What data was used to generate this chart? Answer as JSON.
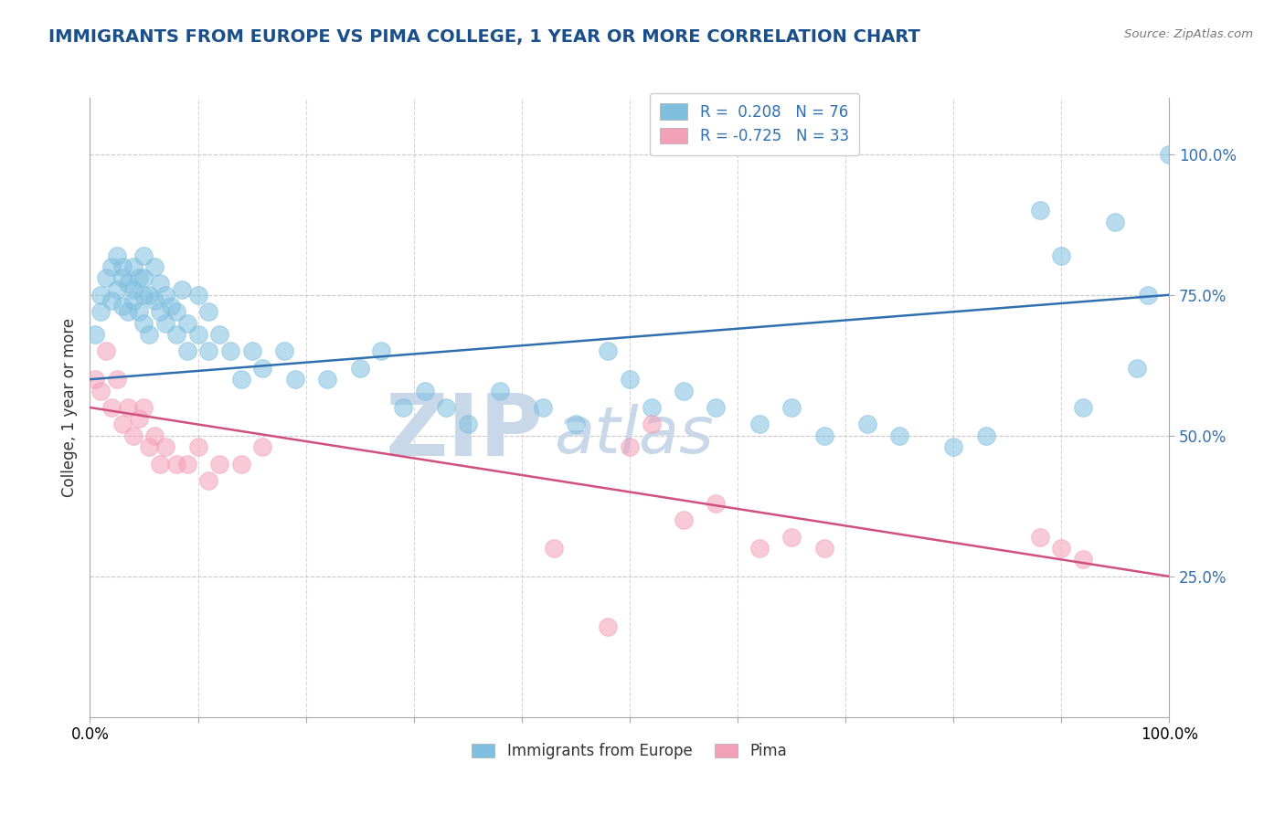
{
  "title": "IMMIGRANTS FROM EUROPE VS PIMA COLLEGE, 1 YEAR OR MORE CORRELATION CHART",
  "source_text": "Source: ZipAtlas.com",
  "ylabel": "College, 1 year or more",
  "xmin": 0.0,
  "xmax": 1.0,
  "ymin": 0.0,
  "ymax": 1.1,
  "ytick_labels": [
    "25.0%",
    "50.0%",
    "75.0%",
    "100.0%"
  ],
  "ytick_values": [
    0.25,
    0.5,
    0.75,
    1.0
  ],
  "legend_r1": "R =  0.208",
  "legend_n1": "N = 76",
  "legend_r2": "R = -0.725",
  "legend_n2": "N = 33",
  "color_blue": "#7fbfdf",
  "color_pink": "#f4a0b8",
  "line_color_blue": "#3070b0",
  "line_color_pink": "#d05080",
  "watermark_zip": "ZIP",
  "watermark_atlas": "atlas",
  "watermark_color": "#c8d8e8",
  "blue_line_y_start": 0.6,
  "blue_line_y_end": 0.75,
  "pink_line_y_start": 0.55,
  "pink_line_y_end": 0.25,
  "background_color": "#ffffff",
  "grid_color": "#cccccc",
  "title_color": "#1a4f8a",
  "legend_text_color": "#3070b0",
  "blue_scatter_x": [
    0.005,
    0.01,
    0.01,
    0.015,
    0.02,
    0.02,
    0.025,
    0.025,
    0.03,
    0.03,
    0.03,
    0.035,
    0.035,
    0.04,
    0.04,
    0.04,
    0.045,
    0.045,
    0.05,
    0.05,
    0.05,
    0.05,
    0.055,
    0.055,
    0.06,
    0.06,
    0.065,
    0.065,
    0.07,
    0.07,
    0.075,
    0.08,
    0.08,
    0.085,
    0.09,
    0.09,
    0.1,
    0.1,
    0.11,
    0.11,
    0.12,
    0.13,
    0.14,
    0.15,
    0.16,
    0.18,
    0.19,
    0.22,
    0.25,
    0.27,
    0.29,
    0.31,
    0.33,
    0.35,
    0.38,
    0.42,
    0.45,
    0.48,
    0.5,
    0.52,
    0.55,
    0.58,
    0.62,
    0.65,
    0.68,
    0.72,
    0.75,
    0.8,
    0.83,
    0.88,
    0.9,
    0.92,
    0.95,
    0.97,
    0.98,
    1.0
  ],
  "blue_scatter_y": [
    0.68,
    0.72,
    0.75,
    0.78,
    0.74,
    0.8,
    0.76,
    0.82,
    0.78,
    0.8,
    0.73,
    0.77,
    0.72,
    0.76,
    0.8,
    0.74,
    0.78,
    0.72,
    0.75,
    0.7,
    0.78,
    0.82,
    0.75,
    0.68,
    0.74,
    0.8,
    0.72,
    0.77,
    0.7,
    0.75,
    0.73,
    0.68,
    0.72,
    0.76,
    0.7,
    0.65,
    0.75,
    0.68,
    0.72,
    0.65,
    0.68,
    0.65,
    0.6,
    0.65,
    0.62,
    0.65,
    0.6,
    0.6,
    0.62,
    0.65,
    0.55,
    0.58,
    0.55,
    0.52,
    0.58,
    0.55,
    0.52,
    0.65,
    0.6,
    0.55,
    0.58,
    0.55,
    0.52,
    0.55,
    0.5,
    0.52,
    0.5,
    0.48,
    0.5,
    0.9,
    0.82,
    0.55,
    0.88,
    0.62,
    0.75,
    1.0
  ],
  "pink_scatter_x": [
    0.005,
    0.01,
    0.015,
    0.02,
    0.025,
    0.03,
    0.035,
    0.04,
    0.045,
    0.05,
    0.055,
    0.06,
    0.065,
    0.07,
    0.08,
    0.09,
    0.1,
    0.11,
    0.12,
    0.14,
    0.16,
    0.43,
    0.48,
    0.5,
    0.52,
    0.55,
    0.58,
    0.62,
    0.65,
    0.68,
    0.88,
    0.9,
    0.92
  ],
  "pink_scatter_y": [
    0.6,
    0.58,
    0.65,
    0.55,
    0.6,
    0.52,
    0.55,
    0.5,
    0.53,
    0.55,
    0.48,
    0.5,
    0.45,
    0.48,
    0.45,
    0.45,
    0.48,
    0.42,
    0.45,
    0.45,
    0.48,
    0.3,
    0.16,
    0.48,
    0.52,
    0.35,
    0.38,
    0.3,
    0.32,
    0.3,
    0.32,
    0.3,
    0.28
  ]
}
